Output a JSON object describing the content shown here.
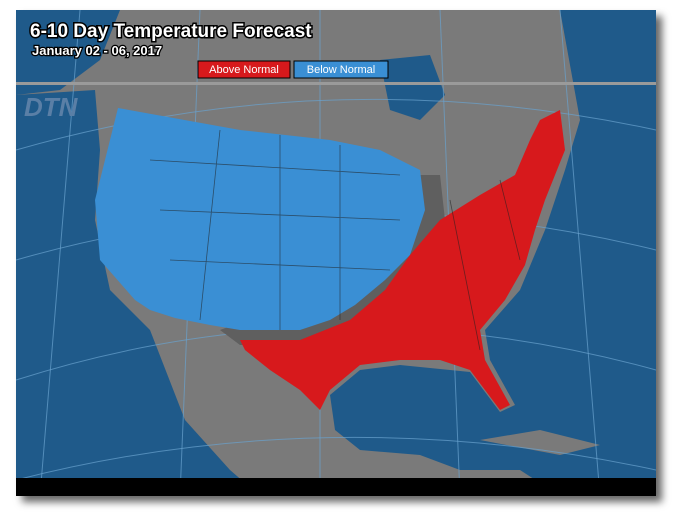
{
  "header": {
    "title": "6-10 Day Temperature Forecast",
    "subtitle": "January 02 - 06, 2017"
  },
  "legend": [
    {
      "label": "Above Normal",
      "color": "#d7191c"
    },
    {
      "label": "Below Normal",
      "color": "#3a8fd4"
    }
  ],
  "logo": "DTN"
}
